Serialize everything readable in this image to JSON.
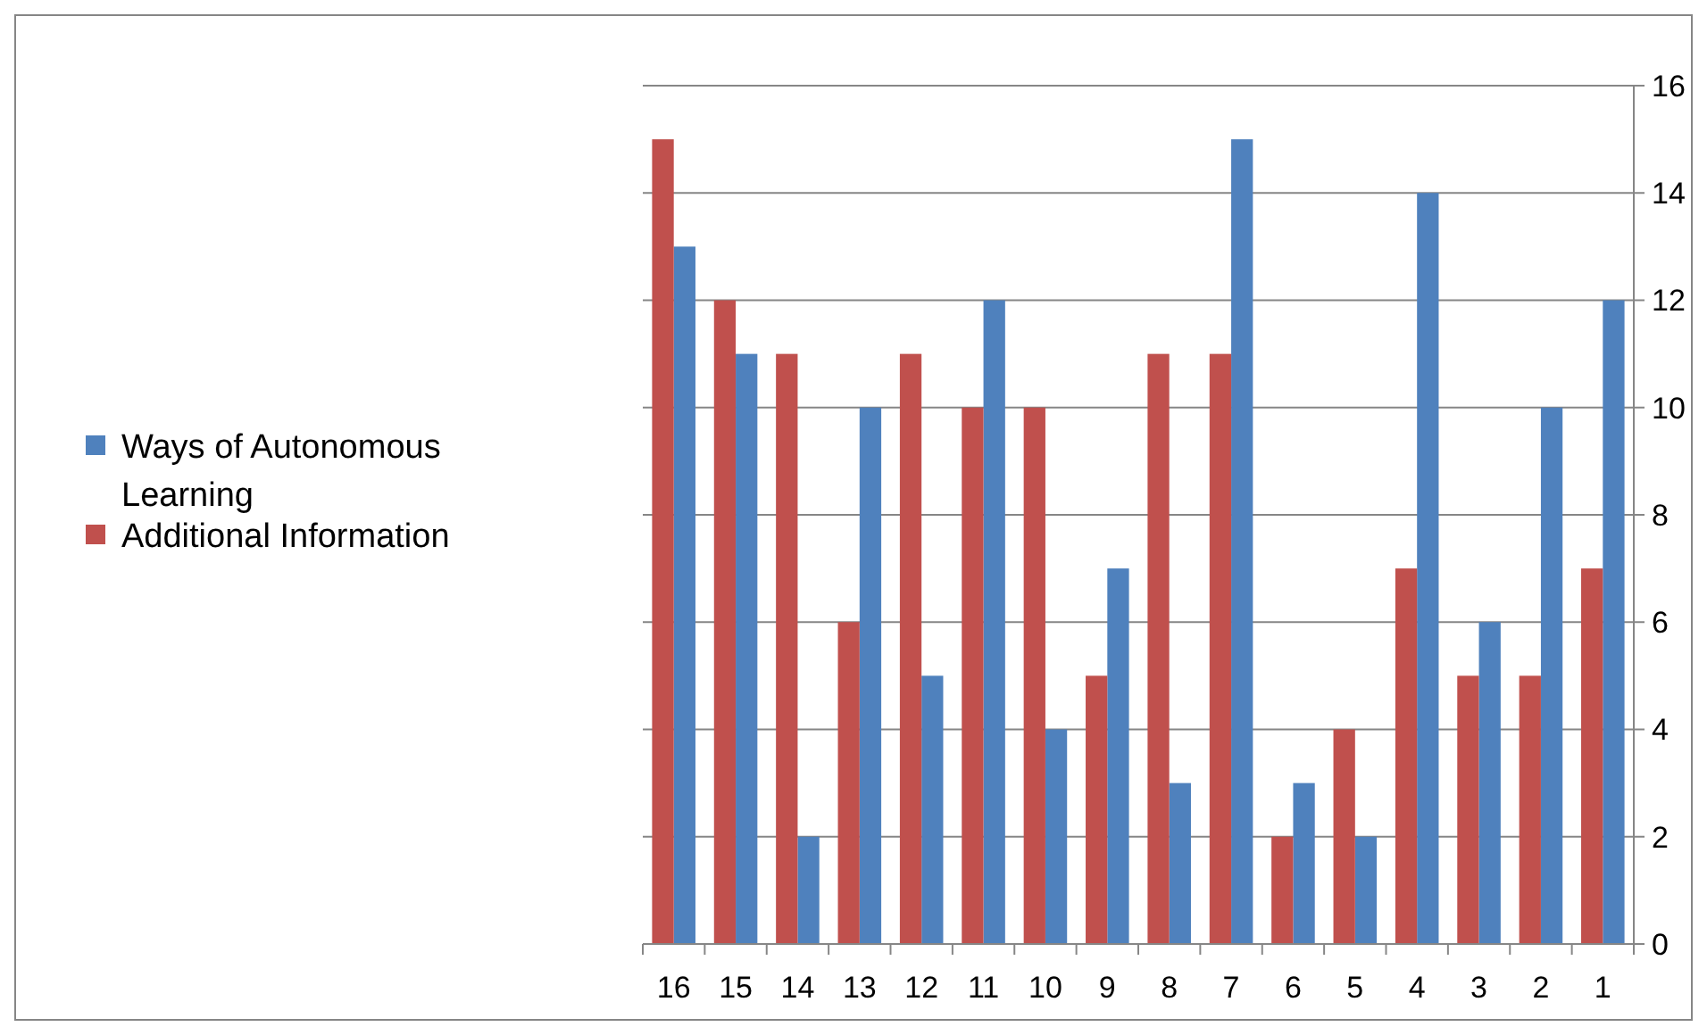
{
  "chart_data": {
    "type": "bar",
    "categories": [
      "16",
      "15",
      "14",
      "13",
      "12",
      "11",
      "10",
      "9",
      "8",
      "7",
      "6",
      "5",
      "4",
      "3",
      "2",
      "1"
    ],
    "series": [
      {
        "name": "Ways of Autonomous Learning",
        "color": "#4f81bd",
        "values": [
          13,
          11,
          2,
          10,
          5,
          12,
          4,
          7,
          3,
          15,
          3,
          2,
          14,
          6,
          10,
          12
        ]
      },
      {
        "name": "Additional Information",
        "color": "#c0504d",
        "values": [
          15,
          12,
          11,
          6,
          11,
          10,
          10,
          5,
          11,
          11,
          2,
          4,
          7,
          5,
          5,
          7
        ]
      }
    ],
    "ylim": [
      0,
      16
    ],
    "yticks": [
      0,
      2,
      4,
      6,
      8,
      10,
      12,
      14,
      16
    ],
    "grid": "y",
    "legend": "left"
  }
}
